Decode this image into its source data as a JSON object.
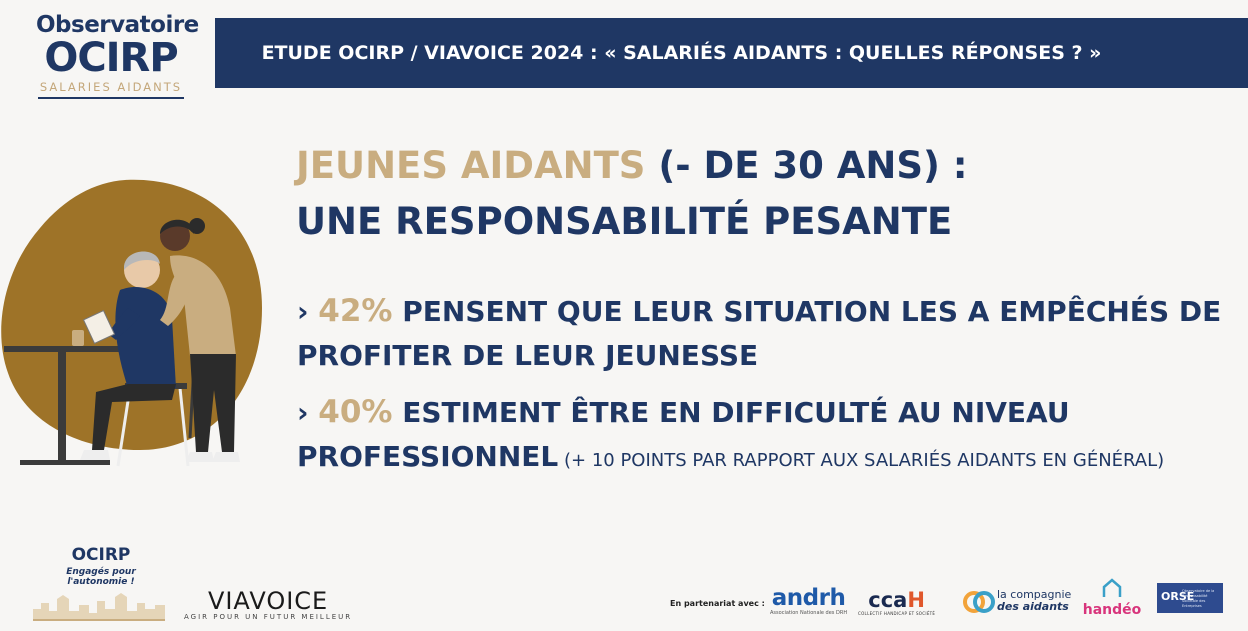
{
  "logo": {
    "line1": "Observatoire",
    "line2": "OCIRP",
    "line3": "SALARIES AIDANTS"
  },
  "banner": {
    "title": "ETUDE OCIRP / VIAVOICE 2024 : « SALARIÉS AIDANTS : QUELLES RÉPONSES ? »"
  },
  "heading": {
    "highlight": "JEUNES AIDANTS",
    "rest": " (- DE 30 ANS) :",
    "line2": "UNE RESPONSABILITÉ PESANTE"
  },
  "points": [
    {
      "bullet": "› ",
      "value": "42%",
      "text": " PENSENT QUE LEUR SITUATION LES A EMPÊCHÉS DE PROFITER DE LEUR JEUNESSE",
      "note": ""
    },
    {
      "bullet": "› ",
      "value": "40%",
      "text": "  ESTIMENT ÊTRE EN DIFFICULTÉ AU NIVEAU PROFESSIONNEL",
      "note": " (+ 10 POINTS PAR RAPPORT AUX SALARIÉS AIDANTS EN GÉNÉRAL)"
    }
  ],
  "footer": {
    "ocirp_name": "OCIRP",
    "ocirp_tagline": "Engagés pour l'autonomie !",
    "viavoice_name": "VIAVOICE",
    "viavoice_tagline": "AGIR POUR UN FUTUR MEILLEUR",
    "partners_label": "En partenariat avec :",
    "andrh_name": "andrh",
    "andrh_tagline": "Association Nationale des DRH",
    "cca_name_a": "cca",
    "cca_name_b": "H",
    "cca_tagline": "COLLECTIF HANDICAP ET SOCIÉTÉ",
    "compagnie_line1": "la compagnie",
    "compagnie_line2": "des aidants",
    "handeo_name": "handéo",
    "orse_name": "ORSE",
    "orse_tagline": "Observatoire de la Responsabilité Sociétale des Entreprises"
  },
  "colors": {
    "navy": "#1f3764",
    "gold": "#c9ad80",
    "brown_blob": "#9e7328",
    "background": "#f7f6f4"
  }
}
